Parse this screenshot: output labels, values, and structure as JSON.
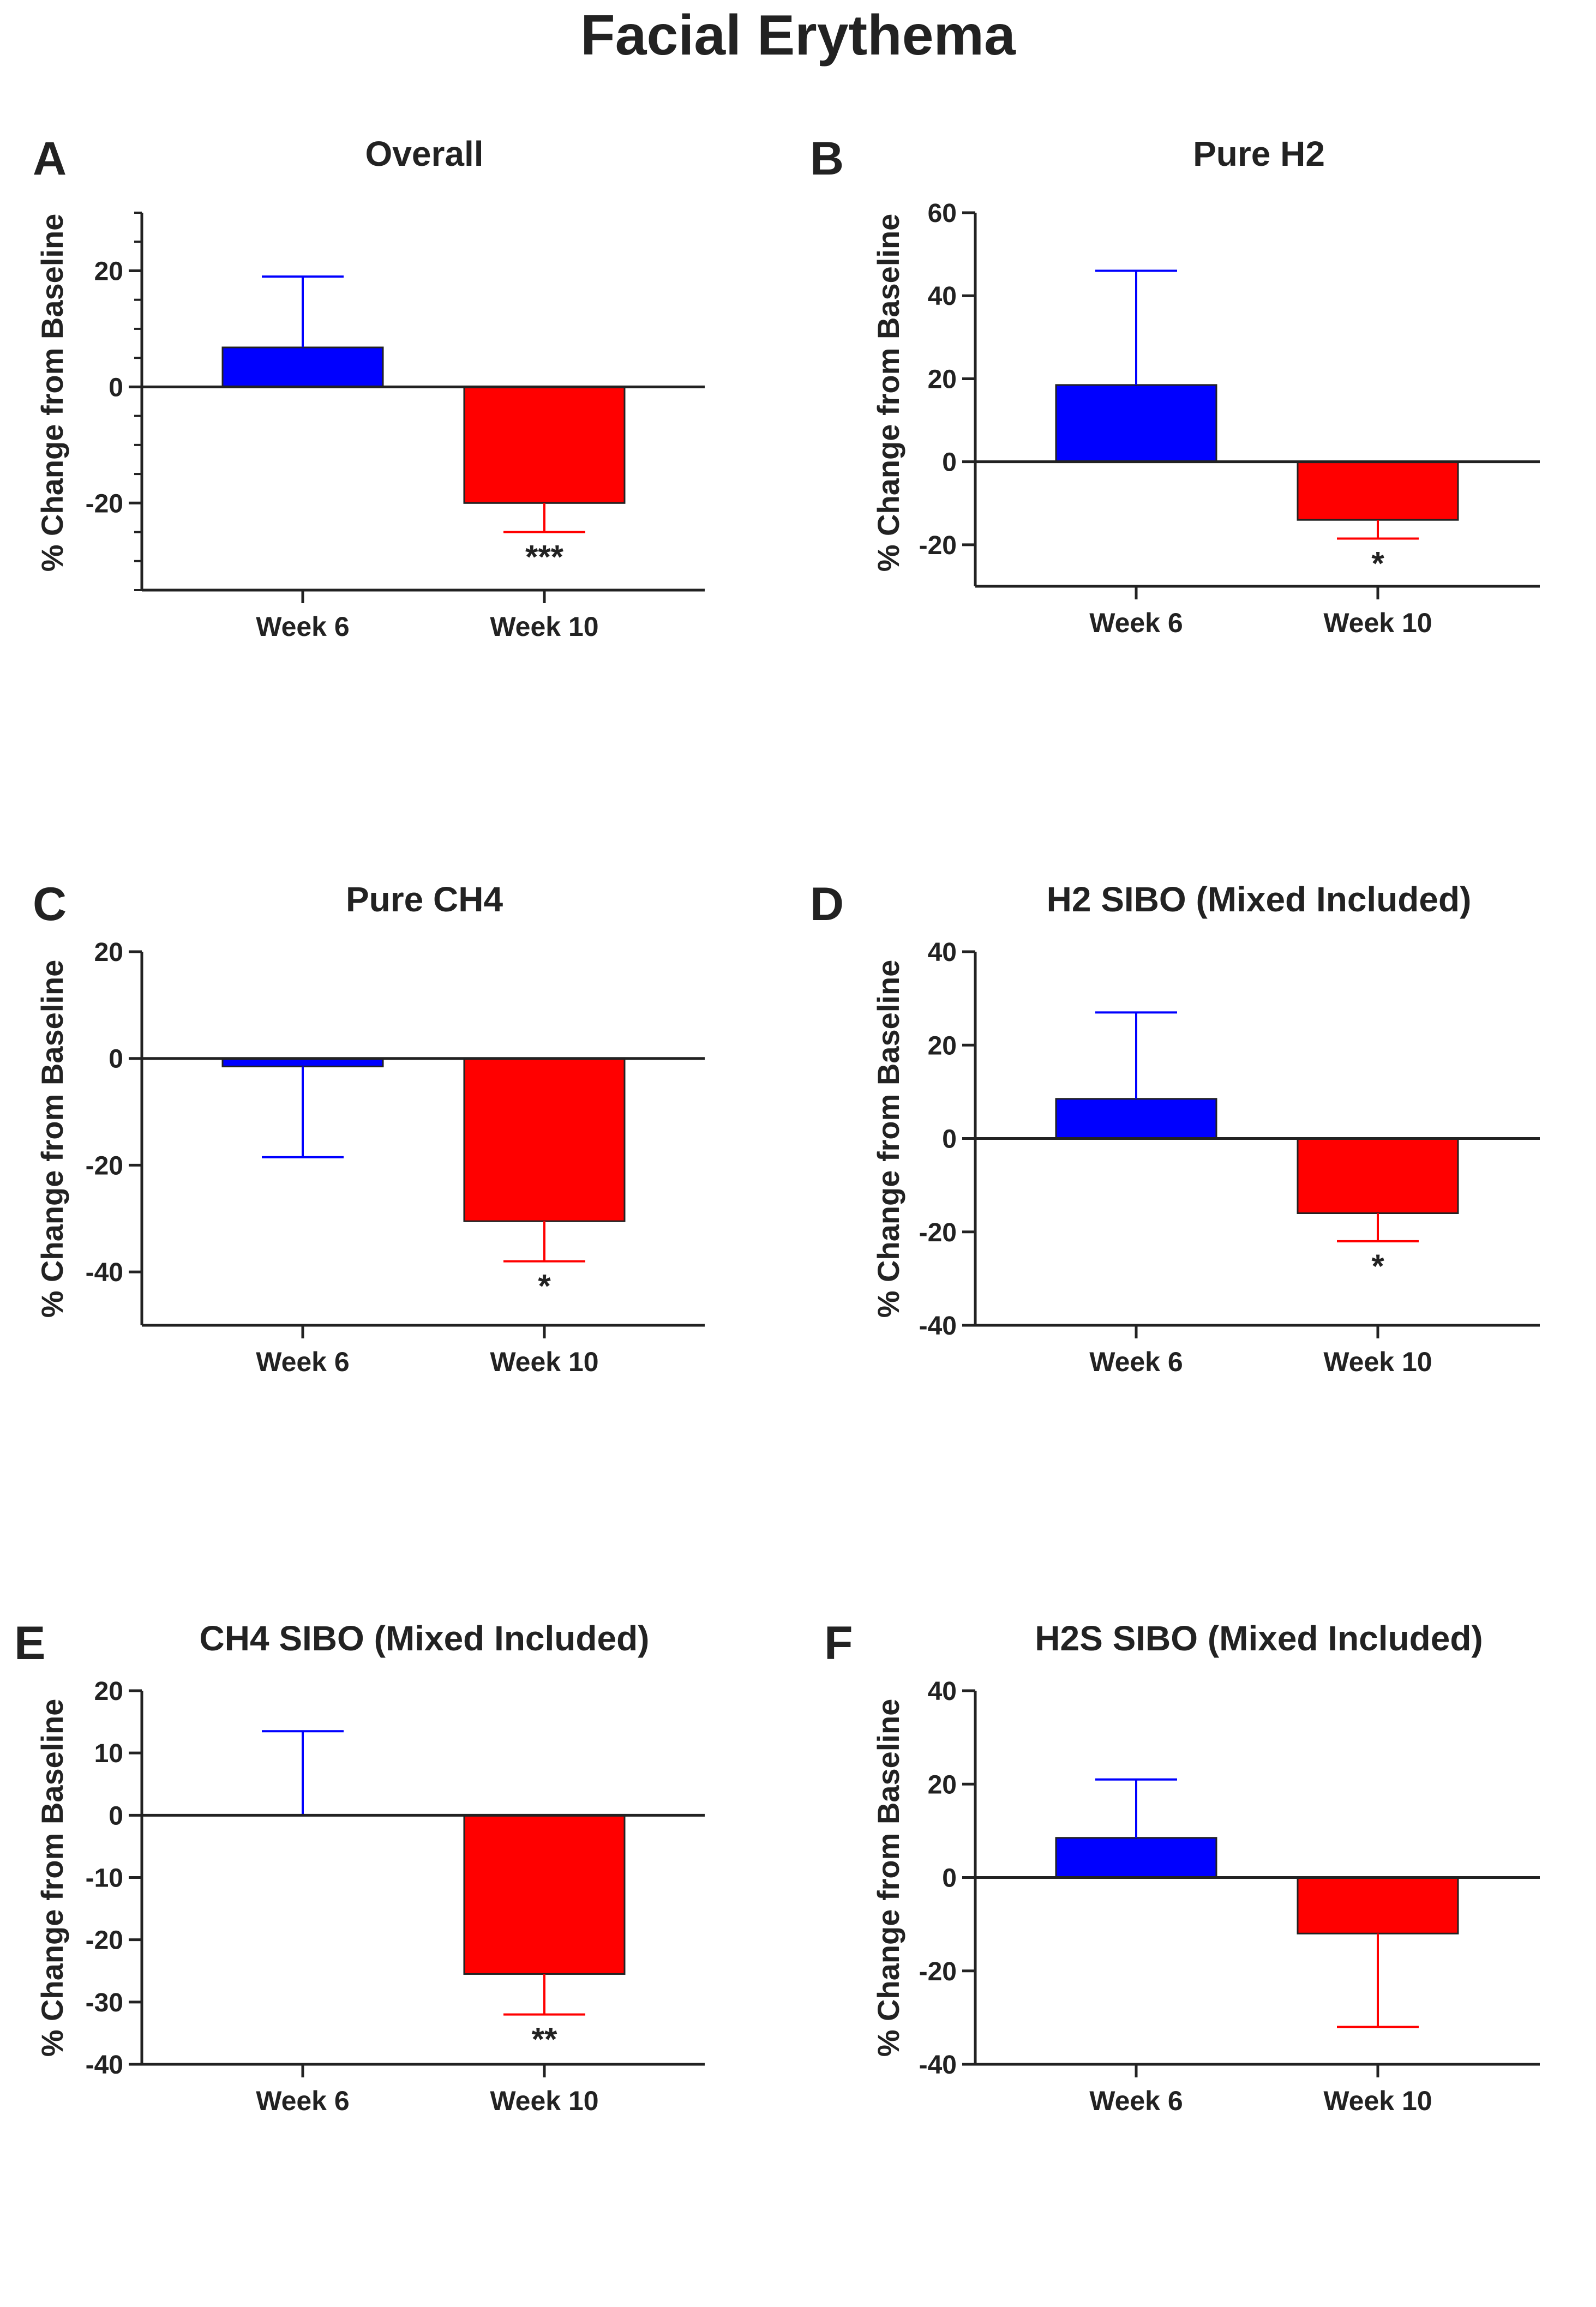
{
  "figure_title": "Facial Erythema",
  "colors": {
    "week6": "#0000ff",
    "week10": "#ff0000",
    "axis": "#222222"
  },
  "chart_data": [
    {
      "panel": "A",
      "type": "bar",
      "title": "Overall",
      "ylabel": "% Change from Baseline",
      "categories": [
        "Week 6",
        "Week 10"
      ],
      "values": [
        6.8,
        -20
      ],
      "error_bars": [
        {
          "direction": "up",
          "value": 19
        },
        {
          "direction": "down",
          "value": -25
        }
      ],
      "significance": [
        "",
        "***"
      ],
      "ylim": [
        -35,
        30
      ],
      "yticks": [
        -20,
        0,
        20
      ],
      "minor_step": 5
    },
    {
      "panel": "B",
      "type": "bar",
      "title": "Pure H2",
      "ylabel": "% Change from Baseline",
      "categories": [
        "Week 6",
        "Week 10"
      ],
      "values": [
        18.5,
        -14
      ],
      "error_bars": [
        {
          "direction": "up",
          "value": 46
        },
        {
          "direction": "down",
          "value": -18.5
        }
      ],
      "significance": [
        "",
        "*"
      ],
      "ylim": [
        -30,
        60
      ],
      "yticks": [
        -20,
        0,
        20,
        40,
        60
      ],
      "minor_step": null
    },
    {
      "panel": "C",
      "type": "bar",
      "title": "Pure CH4",
      "ylabel": "% Change from Baseline",
      "categories": [
        "Week 6",
        "Week 10"
      ],
      "values": [
        -1.5,
        -30.5
      ],
      "error_bars": [
        {
          "direction": "down",
          "value": -18.5
        },
        {
          "direction": "down",
          "value": -38
        }
      ],
      "significance": [
        "",
        "*"
      ],
      "ylim": [
        -50,
        20
      ],
      "yticks": [
        -40,
        -20,
        0,
        20
      ],
      "minor_step": null
    },
    {
      "panel": "D",
      "type": "bar",
      "title": "H2 SIBO (Mixed Included)",
      "ylabel": "% Change from Baseline",
      "categories": [
        "Week 6",
        "Week 10"
      ],
      "values": [
        8.5,
        -16
      ],
      "error_bars": [
        {
          "direction": "up",
          "value": 27
        },
        {
          "direction": "down",
          "value": -22
        }
      ],
      "significance": [
        "",
        "*"
      ],
      "ylim": [
        -40,
        40
      ],
      "yticks": [
        -40,
        -20,
        0,
        20,
        40
      ],
      "minor_step": null
    },
    {
      "panel": "E",
      "type": "bar",
      "title": "CH4 SIBO (Mixed Included)",
      "ylabel": "% Change from Baseline",
      "categories": [
        "Week 6",
        "Week 10"
      ],
      "values": [
        0,
        -25.5
      ],
      "error_bars": [
        {
          "direction": "up",
          "value": 13.5
        },
        {
          "direction": "down",
          "value": -32
        }
      ],
      "significance": [
        "",
        "**"
      ],
      "ylim": [
        -40,
        20
      ],
      "yticks": [
        -40,
        -30,
        -20,
        -10,
        0,
        10,
        20
      ],
      "minor_step": null
    },
    {
      "panel": "F",
      "type": "bar",
      "title": "H2S SIBO (Mixed Included)",
      "ylabel": "% Change from Baseline",
      "categories": [
        "Week 6",
        "Week 10"
      ],
      "values": [
        8.5,
        -12
      ],
      "error_bars": [
        {
          "direction": "up",
          "value": 21
        },
        {
          "direction": "down",
          "value": -32
        }
      ],
      "significance": [
        "",
        ""
      ],
      "ylim": [
        -40,
        40
      ],
      "yticks": [
        -40,
        -20,
        0,
        20,
        40
      ],
      "minor_step": null
    }
  ]
}
